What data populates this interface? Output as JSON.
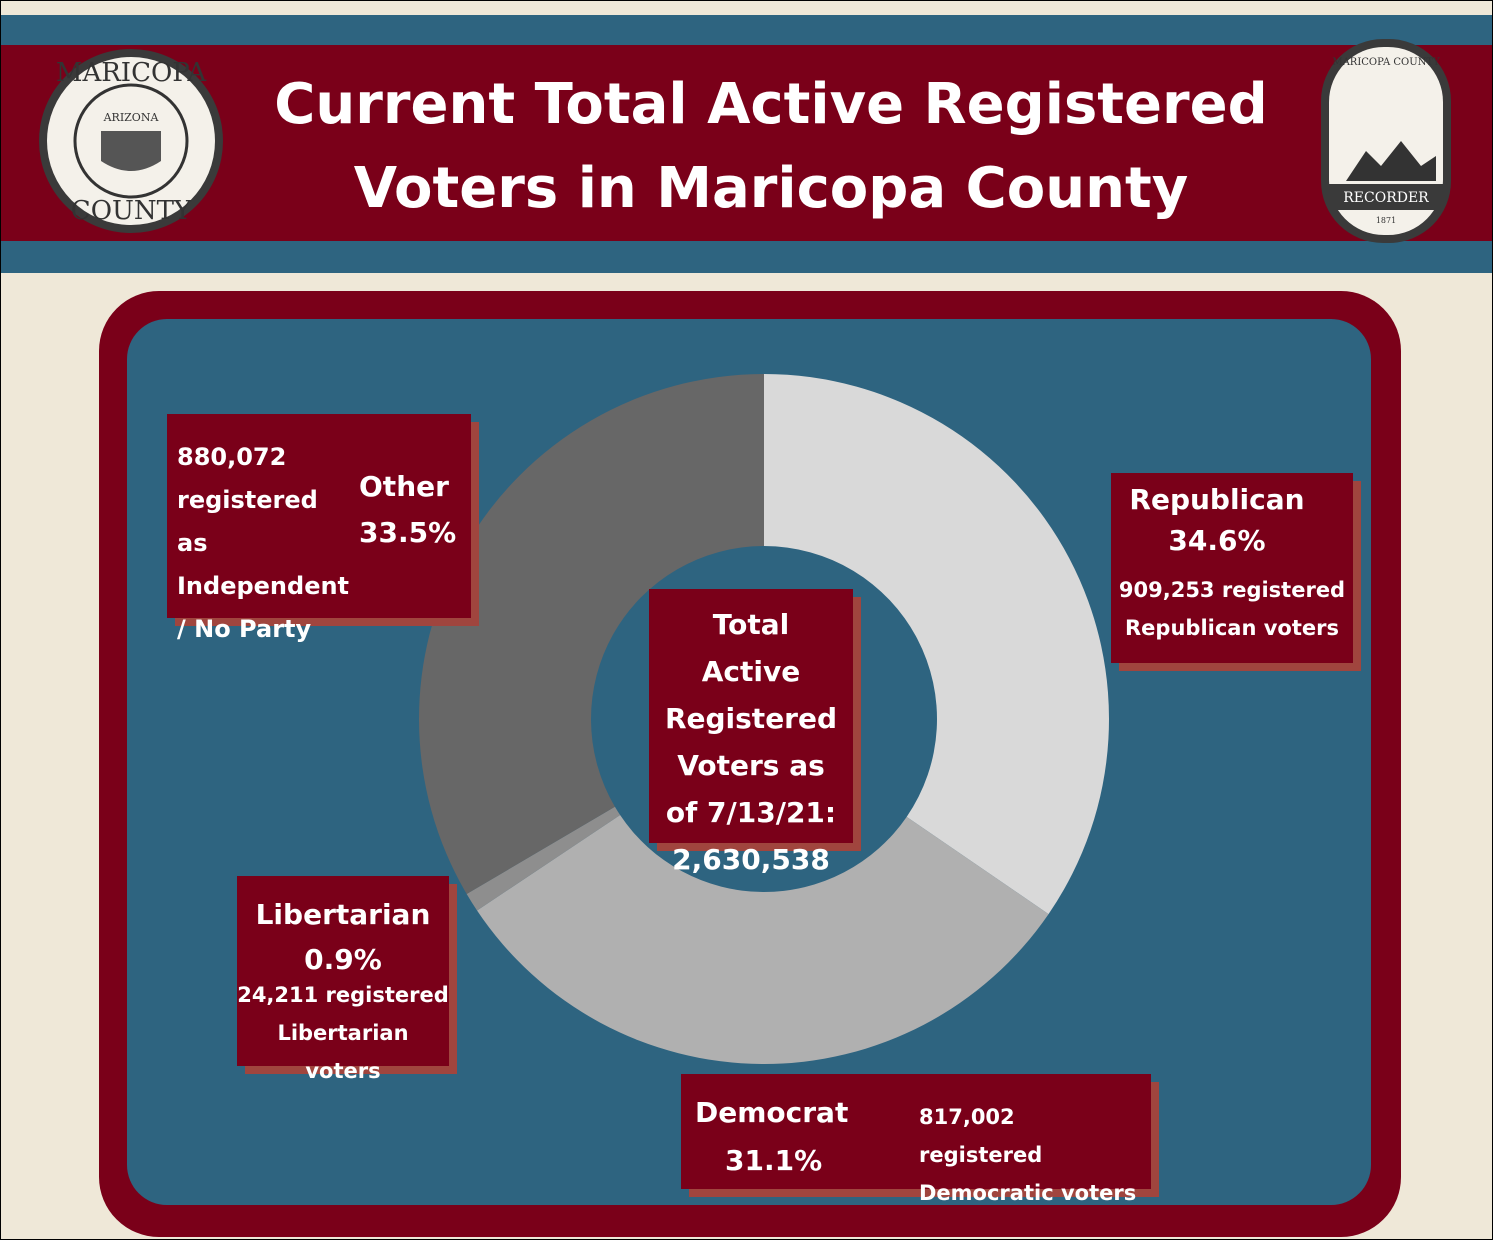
{
  "chart_data": {
    "type": "pie",
    "donut": true,
    "title": "Current Total Active Registered Voters in Maricopa County",
    "center_label": "Total Active Registered Voters as of 7/13/21: 2,630,538",
    "categories": [
      "Republican",
      "Democrat",
      "Libertarian",
      "Other"
    ],
    "values": [
      34.6,
      31.1,
      0.9,
      33.5
    ],
    "value_labels": [
      "34.6%",
      "31.1%",
      "0.9%",
      "33.5%"
    ],
    "colors": [
      "#d9d9d9",
      "#b0b0b0",
      "#8e8e8e",
      "#676767"
    ],
    "descriptions": [
      "909,253 registered Republican voters",
      "817,002 registered Democratic voters",
      "24,211 registered Libertarian voters",
      "880,072 registered as Independent / No Party"
    ]
  },
  "logos": {
    "left": [
      "MARICOPA",
      "ARIZONA",
      "COUNTY"
    ],
    "right": [
      "MARICOPA COUNTY",
      "RECORDER",
      "1871"
    ]
  }
}
